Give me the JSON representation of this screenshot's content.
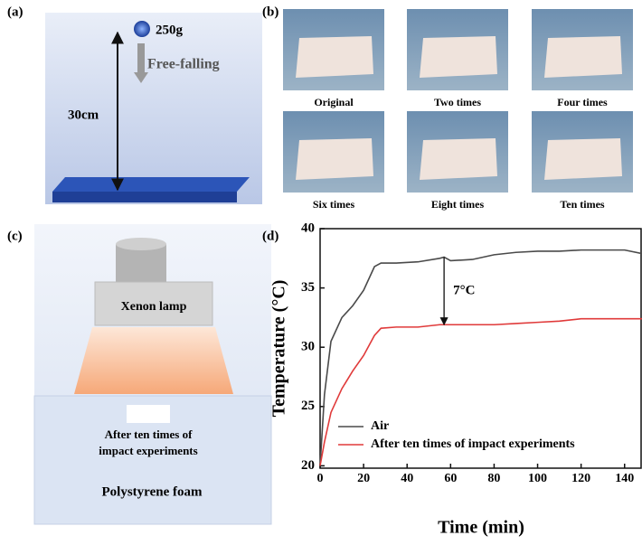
{
  "panel_a": {
    "label": "(a)",
    "mass": "250g",
    "motion": "Free-falling",
    "height": "30cm"
  },
  "panel_b": {
    "label": "(b)",
    "captions": [
      "Original",
      "Two times",
      "Four times",
      "Six times",
      "Eight times",
      "Ten times"
    ]
  },
  "panel_c": {
    "label": "(c)",
    "lamp": "Xenon lamp",
    "sample": [
      "After ten times of",
      "impact experiments"
    ],
    "base": "Polystyrene foam"
  },
  "chart_data": {
    "type": "line",
    "panel_label": "(d)",
    "annotation": "7°C",
    "x_label": "Time (min)",
    "y_label": "Temperature (°C)",
    "x": [
      0,
      2,
      5,
      10,
      15,
      20,
      25,
      28,
      35,
      45,
      55,
      57,
      60,
      70,
      80,
      90,
      100,
      110,
      120,
      130,
      140,
      148
    ],
    "series": [
      {
        "name": "Air",
        "color": "#4a4a4a",
        "values": [
          20,
          26,
          30.5,
          32.5,
          33.5,
          34.8,
          36.8,
          37.1,
          37.1,
          37.2,
          37.5,
          37.6,
          37.3,
          37.4,
          37.8,
          38,
          38.1,
          38.1,
          38.2,
          38.2,
          38.2,
          37.9
        ]
      },
      {
        "name": "After ten times of impact experiments",
        "color": "#e03a3a",
        "values": [
          20,
          22,
          24.5,
          26.5,
          28,
          29.3,
          31,
          31.6,
          31.7,
          31.7,
          31.9,
          31.9,
          31.9,
          31.9,
          31.9,
          32,
          32.1,
          32.2,
          32.4,
          32.4,
          32.4,
          32.4
        ]
      }
    ],
    "xlim": [
      0,
      148
    ],
    "ylim": [
      19.8,
      40
    ],
    "xticks": [
      0,
      20,
      40,
      60,
      80,
      100,
      120,
      140
    ],
    "yticks": [
      20,
      25,
      30,
      35,
      40
    ],
    "legend": "lower left"
  }
}
